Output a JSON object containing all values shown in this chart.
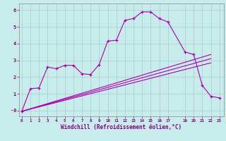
{
  "xlabel": "Windchill (Refroidissement éolien,°C)",
  "background_color": "#c8ecec",
  "line_color": "#aa00aa",
  "grid_color": "#aacccc",
  "series1_x": [
    0,
    1,
    2,
    3,
    4,
    5,
    6,
    7,
    8,
    9,
    10,
    11,
    12,
    13,
    14,
    15,
    16,
    17,
    19,
    20,
    21,
    22,
    23
  ],
  "series1_y": [
    -0.05,
    1.3,
    1.35,
    2.6,
    2.5,
    2.7,
    2.7,
    2.2,
    2.15,
    2.75,
    4.15,
    4.2,
    5.4,
    5.5,
    5.9,
    5.9,
    5.5,
    5.3,
    3.5,
    3.35,
    1.5,
    0.85,
    0.75
  ],
  "series2_x": [
    0,
    22
  ],
  "series2_y": [
    -0.05,
    3.35
  ],
  "series3_x": [
    0,
    22
  ],
  "series3_y": [
    -0.05,
    3.1
  ],
  "series4_x": [
    0,
    22
  ],
  "series4_y": [
    -0.05,
    2.85
  ],
  "xlim": [
    -0.3,
    23.5
  ],
  "ylim": [
    -0.35,
    6.4
  ],
  "xticks": [
    0,
    1,
    2,
    3,
    4,
    5,
    6,
    7,
    8,
    9,
    10,
    11,
    12,
    13,
    14,
    15,
    16,
    17,
    19,
    20,
    21,
    22,
    23
  ],
  "yticks": [
    0,
    1,
    2,
    3,
    4,
    5,
    6
  ],
  "ytick_labels": [
    "-0",
    "1",
    "2",
    "3",
    "4",
    "5",
    "6"
  ]
}
